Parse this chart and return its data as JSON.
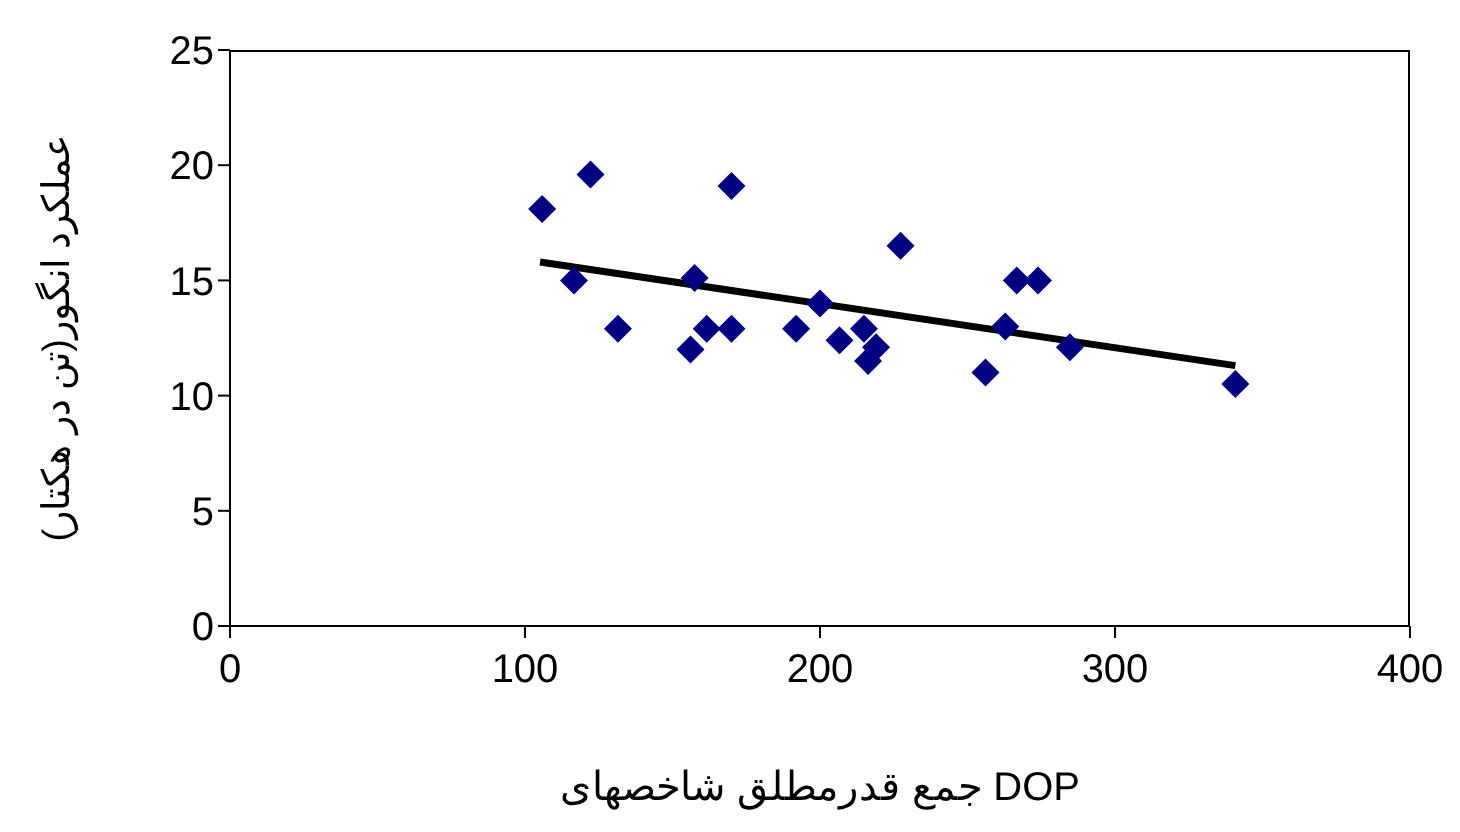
{
  "chart_data": {
    "type": "scatter",
    "xlabel": "جمع قدرمطلق شاخصهای DOP",
    "ylabel": "عملکرد انگور(تن در هکتار)",
    "xlim": [
      0,
      400
    ],
    "xticks": [
      0,
      100,
      200,
      300,
      400
    ],
    "ylim": [
      0,
      25
    ],
    "yticks": [
      0,
      5,
      10,
      15,
      20,
      25
    ],
    "marker": "diamond",
    "series": [
      {
        "color": "#000080",
        "x": [
          105.8,
          122.2,
          116.6,
          131.5,
          157.5,
          156.1,
          161.6,
          170,
          170,
          191.9,
          200,
          206.6,
          214.9,
          219,
          216.3,
          227.3,
          256.1,
          262.8,
          266.7,
          273.9,
          284.7,
          340.8
        ],
        "values": [
          18.1,
          19.6,
          15,
          12.9,
          15.1,
          12,
          12.9,
          19.1,
          12.9,
          12.9,
          14,
          12.4,
          12.9,
          12.1,
          11.5,
          16.5,
          11,
          13,
          15,
          15,
          12.1,
          10.5
        ]
      },
      {
        "type": "line",
        "color": "#000000",
        "marker": "none",
        "x": [
          105.1,
          340.8
        ],
        "values": [
          15.8,
          11.3
        ]
      }
    ]
  }
}
